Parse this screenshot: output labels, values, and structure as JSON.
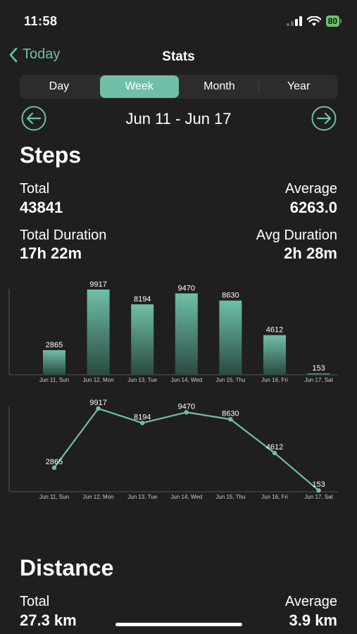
{
  "status": {
    "time": "11:58",
    "battery": "80"
  },
  "nav": {
    "back_label": "Today",
    "title": "Stats"
  },
  "segments": [
    "Day",
    "Week",
    "Month",
    "Year"
  ],
  "selected_segment": "Week",
  "range": {
    "label": "Jun 11 - Jun 17"
  },
  "steps": {
    "title": "Steps",
    "total_label": "Total",
    "total_value": "43841",
    "average_label": "Average",
    "average_value": "6263.0",
    "duration_label": "Total Duration",
    "duration_value": "17h 22m",
    "avg_duration_label": "Avg Duration",
    "avg_duration_value": "2h 28m"
  },
  "distance": {
    "title": "Distance",
    "total_label": "Total",
    "total_value": "27.3 km",
    "average_label": "Average",
    "average_value": "3.9 km"
  },
  "colors": {
    "accent": "#6fbfa9",
    "background": "#1f1f1f"
  },
  "chart_data": [
    {
      "type": "bar",
      "categories": [
        "Jun 11, Sun",
        "Jun 12, Mon",
        "Jun 13, Tue",
        "Jun 14, Wed",
        "Jun 15, Thu",
        "Jun 16, Fri",
        "Jun 17, Sat"
      ],
      "values": [
        2865,
        9917,
        8194,
        9470,
        8630,
        4612,
        153
      ],
      "ylim": [
        0,
        10000
      ],
      "grid": false
    },
    {
      "type": "line",
      "categories": [
        "Jun 11, Sun",
        "Jun 12, Mon",
        "Jun 13, Tue",
        "Jun 14, Wed",
        "Jun 15, Thu",
        "Jun 16, Fri",
        "Jun 17, Sat"
      ],
      "values": [
        2865,
        9917,
        8194,
        9470,
        8630,
        4612,
        153
      ],
      "ylim": [
        0,
        10500
      ],
      "grid": false
    }
  ]
}
